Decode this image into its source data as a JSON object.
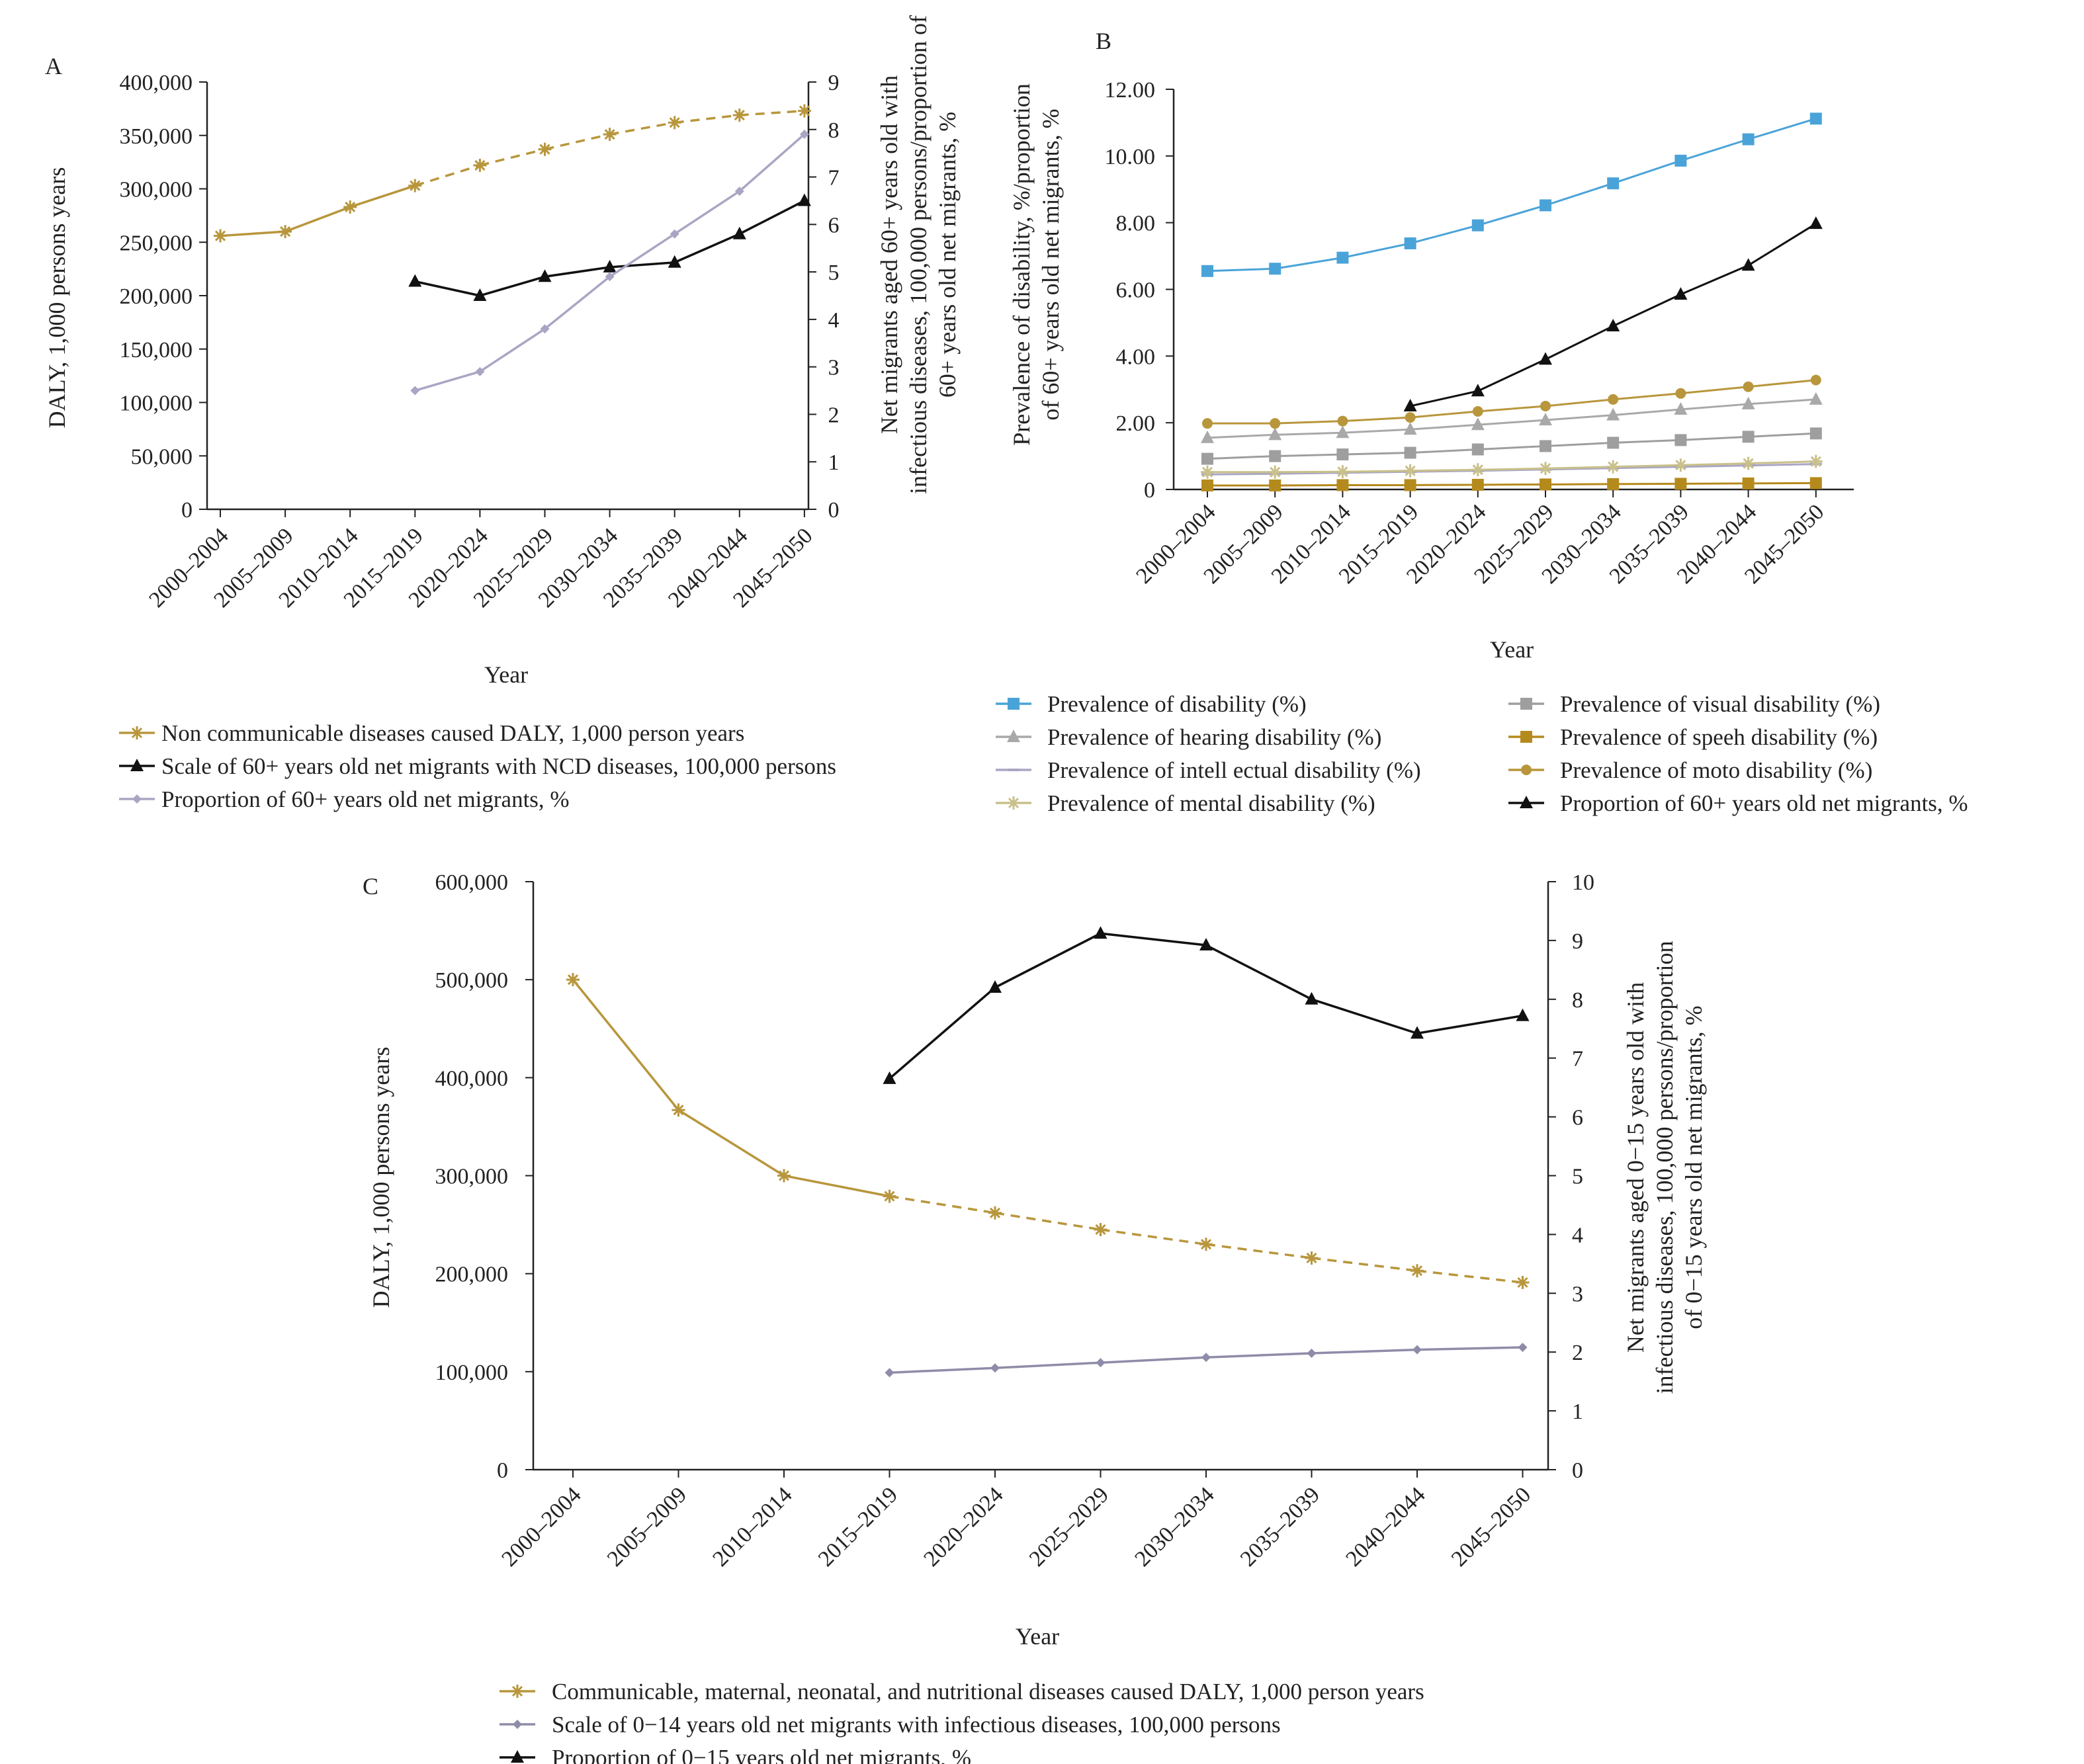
{
  "chart_data": [
    {
      "panel": "A",
      "type": "line",
      "categories": [
        "2000–2004",
        "2005–2009",
        "2010–2014",
        "2015–2019",
        "2020–2024",
        "2025–2029",
        "2030–2034",
        "2035–2039",
        "2040–2044",
        "2045–2050"
      ],
      "xlabel": "Year",
      "ylabel": "DALY, 1,000 persons years",
      "ylabel_right": [
        "Net migrants aged 60+ years old with",
        "infectious diseases, 100,000 persons/proportion of",
        "60+ years old net migrants, %"
      ],
      "ylim": [
        0,
        400000
      ],
      "ylim_right": [
        0,
        9
      ],
      "yticks": [
        "0",
        "50,000",
        "100,000",
        "150,000",
        "200,000",
        "250,000",
        "300,000",
        "350,000",
        "400,000"
      ],
      "yticks_right": [
        "0",
        "1",
        "2",
        "3",
        "4",
        "5",
        "6",
        "7",
        "8",
        "9"
      ],
      "series": [
        {
          "name": "Non communicable diseases caused DALY, 1,000 person years",
          "axis": "left",
          "color": "#b8963c",
          "marker": "asterisk",
          "values": [
            256000,
            260000,
            283000,
            303000,
            322000,
            337000,
            351000,
            362000,
            369000,
            373000
          ],
          "dashed_from_index": 3
        },
        {
          "name": "Scale of 60+ years old net migrants with NCD diseases, 100,000 persons",
          "axis": "right",
          "color": "#111111",
          "marker": "triangle",
          "values": [
            null,
            null,
            null,
            4.8,
            4.5,
            4.9,
            5.1,
            5.2,
            5.8,
            6.5
          ]
        },
        {
          "name": "Proportion of 60+ years old net migrants, %",
          "axis": "right",
          "color": "#a9a6c4",
          "marker": "diamond",
          "values": [
            null,
            null,
            null,
            2.5,
            2.9,
            3.8,
            4.9,
            5.8,
            6.7,
            7.9
          ]
        }
      ]
    },
    {
      "panel": "B",
      "type": "line",
      "categories": [
        "2000–2004",
        "2005–2009",
        "2010–2014",
        "2015–2019",
        "2020–2024",
        "2025–2029",
        "2030–2034",
        "2035–2039",
        "2040–2044",
        "2045–2050"
      ],
      "xlabel": "Year",
      "ylabel": [
        "Prevalence of disability, %/proportion",
        "of 60+ years old net migrants, %"
      ],
      "ylim": [
        0,
        12
      ],
      "yticks": [
        "0",
        "2.00",
        "4.00",
        "6.00",
        "8.00",
        "10.00",
        "12.00"
      ],
      "series": [
        {
          "name": "Prevalence of disability (%)",
          "color": "#4aa3d8",
          "marker": "square",
          "values": [
            6.55,
            6.62,
            6.95,
            7.38,
            7.92,
            8.52,
            9.18,
            9.86,
            10.5,
            11.12
          ]
        },
        {
          "name": "Prevalence of hearing disability (%)",
          "color": "#a9a9a9",
          "marker": "triangle",
          "values": [
            1.55,
            1.64,
            1.7,
            1.8,
            1.94,
            2.08,
            2.23,
            2.4,
            2.56,
            2.7
          ]
        },
        {
          "name": "Prevalence of intell ectual disability (%)",
          "color": "#a9a6c4",
          "marker": "dash",
          "values": [
            0.45,
            0.47,
            0.5,
            0.53,
            0.56,
            0.6,
            0.64,
            0.68,
            0.72,
            0.76
          ]
        },
        {
          "name": "Prevalence of mental disability (%)",
          "color": "#c9c08a",
          "marker": "asterisk",
          "values": [
            0.52,
            0.52,
            0.53,
            0.56,
            0.59,
            0.63,
            0.68,
            0.73,
            0.78,
            0.84
          ]
        },
        {
          "name": "Prevalence of  visual disability (%)",
          "color": "#9e9e9e",
          "marker": "square",
          "values": [
            0.92,
            1.0,
            1.05,
            1.1,
            1.2,
            1.3,
            1.4,
            1.48,
            1.58,
            1.68
          ]
        },
        {
          "name": "Prevalence of  speeh disability (%)",
          "color": "#b58a1c",
          "marker": "square",
          "values": [
            0.12,
            0.12,
            0.13,
            0.13,
            0.14,
            0.15,
            0.16,
            0.17,
            0.18,
            0.19
          ]
        },
        {
          "name": "Prevalence of moto disability (%)",
          "color": "#b8963c",
          "marker": "circle",
          "values": [
            1.98,
            1.98,
            2.05,
            2.16,
            2.34,
            2.5,
            2.7,
            2.88,
            3.08,
            3.28
          ]
        },
        {
          "name": "Proportion of 60+ years old net migrants, %",
          "color": "#111111",
          "marker": "triangle",
          "values": [
            null,
            null,
            null,
            2.5,
            2.95,
            3.9,
            4.9,
            5.85,
            6.72,
            7.97
          ]
        }
      ]
    },
    {
      "panel": "C",
      "type": "line",
      "categories": [
        "2000–2004",
        "2005–2009",
        "2010–2014",
        "2015–2019",
        "2020–2024",
        "2025–2029",
        "2030–2034",
        "2035–2039",
        "2040–2044",
        "2045–2050"
      ],
      "xlabel": "Year",
      "ylabel": "DALY, 1,000 persons years",
      "ylabel_right": [
        "Net migrants aged 0−15 years old with",
        "infectious diseases, 100,000 persons/proportion",
        "of 0−15 years old net migrants, %"
      ],
      "ylim": [
        0,
        600000
      ],
      "ylim_right": [
        0,
        10
      ],
      "yticks": [
        "0",
        "100,000",
        "200,000",
        "300,000",
        "400,000",
        "500,000",
        "600,000"
      ],
      "yticks_right": [
        "0",
        "1",
        "2",
        "3",
        "4",
        "5",
        "6",
        "7",
        "8",
        "9",
        "10"
      ],
      "series": [
        {
          "name": "Communicable, maternal, neonatal, and nutritional diseases caused DALY, 1,000 person years",
          "axis": "left",
          "color": "#b8963c",
          "marker": "asterisk",
          "values": [
            500000,
            367000,
            300000,
            279000,
            262000,
            245000,
            230000,
            216000,
            203000,
            191000
          ],
          "dashed_from_index": 3
        },
        {
          "name": "Scale of 0−14 years old net migrants with infectious diseases, 100,000 persons",
          "axis": "right",
          "color": "#8e8ca8",
          "marker": "diamond",
          "values": [
            null,
            null,
            null,
            1.65,
            1.73,
            1.82,
            1.91,
            1.98,
            2.04,
            2.08
          ]
        },
        {
          "name": "Proportion of 0−15 years old net migrants, %",
          "axis": "right",
          "color": "#111111",
          "marker": "triangle",
          "values": [
            null,
            null,
            null,
            6.65,
            8.2,
            9.12,
            8.92,
            8.0,
            7.42,
            7.72
          ]
        }
      ]
    }
  ]
}
